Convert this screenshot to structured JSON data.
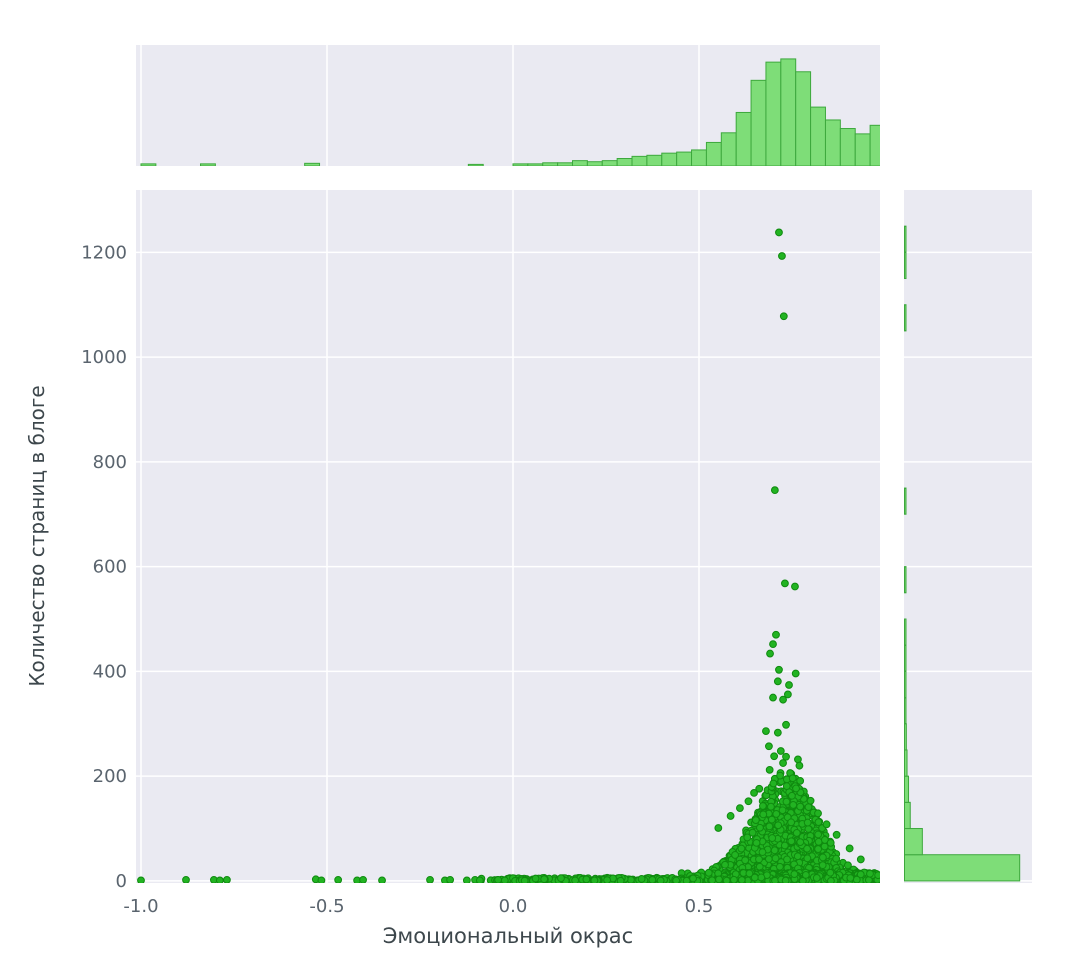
{
  "chart_data": {
    "type": "scatter",
    "subtype": "jointplot-scatter-with-marginal-histograms",
    "title": "",
    "xlabel": "Эмоциональный окрас",
    "ylabel": "Количество страниц в блоге",
    "x_tick_labels": [
      "-1.0",
      "-0.5",
      "0.0",
      "0.5"
    ],
    "x_ticks": [
      -1.0,
      -0.5,
      0.0,
      0.5
    ],
    "y_tick_labels": [
      "0",
      "200",
      "400",
      "600",
      "800",
      "1000",
      "1200"
    ],
    "y_ticks": [
      0,
      200,
      400,
      600,
      800,
      1000,
      1200
    ],
    "xlim": [
      -1.0134,
      0.9866
    ],
    "ylim": [
      -4,
      1319
    ],
    "grid": true,
    "legend": "none",
    "colors": {
      "point_fill": "#22b322",
      "point_edge": "#0f8a0f",
      "hist_fill": "#7edd78",
      "hist_edge": "#3da83d",
      "panel_bg": "#eaeaf2",
      "grid_line": "#ffffff",
      "tick_text": "#5a646e",
      "axis_title_text": "#3d474c",
      "figure_bg": "#ffffff"
    },
    "marginal_top_hist": {
      "orientation": "vertical",
      "bin_start": -1.0,
      "bin_width": 0.04,
      "max_height_fraction": 0.885,
      "heights_norm": [
        0.02,
        0,
        0,
        0,
        0.02,
        0,
        0,
        0,
        0,
        0,
        0,
        0.025,
        0,
        0,
        0,
        0,
        0,
        0,
        0,
        0,
        0,
        0,
        0.015,
        0,
        0,
        0.02,
        0.02,
        0.03,
        0.03,
        0.05,
        0.04,
        0.05,
        0.07,
        0.09,
        0.1,
        0.12,
        0.13,
        0.15,
        0.22,
        0.31,
        0.5,
        0.8,
        0.97,
        1.0,
        0.88,
        0.55,
        0.43,
        0.35,
        0.3,
        0.38
      ]
    },
    "marginal_right_hist": {
      "orientation": "horizontal",
      "bin_start": 0,
      "bin_width": 50,
      "max_width_fraction": 0.9,
      "widths_norm": [
        1.0,
        0.155,
        0.05,
        0.035,
        0.022,
        0.016,
        0.012,
        0.012,
        0.01,
        0.006,
        0,
        0.006,
        0,
        0,
        0.005,
        0,
        0,
        0,
        0,
        0,
        0,
        0.005,
        0,
        0.005,
        0.005
      ]
    },
    "scatter": {
      "seed": 7,
      "point_radius_px": 3.4,
      "outlier_points": [
        [
          0.715,
          1238
        ],
        [
          0.723,
          1193
        ],
        [
          0.728,
          1078
        ],
        [
          0.704,
          746
        ],
        [
          0.731,
          568
        ],
        [
          0.758,
          562
        ],
        [
          0.707,
          470
        ],
        [
          0.699,
          452
        ],
        [
          0.691,
          434
        ],
        [
          0.715,
          403
        ],
        [
          0.76,
          396
        ],
        [
          0.712,
          381
        ],
        [
          0.742,
          374
        ],
        [
          0.739,
          356
        ],
        [
          0.699,
          350
        ],
        [
          0.726,
          346
        ],
        [
          0.734,
          298
        ],
        [
          0.68,
          286
        ],
        [
          0.712,
          283
        ],
        [
          0.688,
          257
        ],
        [
          0.72,
          248
        ],
        [
          0.702,
          238
        ],
        [
          0.734,
          237
        ],
        [
          0.766,
          232
        ],
        [
          0.726,
          225
        ],
        [
          0.77,
          220
        ],
        [
          0.69,
          212
        ],
        [
          0.745,
          206
        ],
        [
          0.718,
          201
        ],
        [
          0.752,
          196
        ],
        [
          0.772,
          191
        ],
        [
          0.7,
          186
        ],
        [
          0.736,
          181
        ],
        [
          0.552,
          101
        ],
        [
          0.585,
          124
        ],
        [
          0.61,
          139
        ],
        [
          0.633,
          152
        ],
        [
          0.648,
          168
        ],
        [
          0.662,
          176
        ],
        [
          0.8,
          153
        ],
        [
          0.82,
          129
        ],
        [
          0.843,
          108
        ],
        [
          0.87,
          88
        ],
        [
          0.905,
          62
        ],
        [
          0.935,
          41
        ]
      ],
      "floor_points_negative": [
        [
          -1.0,
          1
        ],
        [
          -0.879,
          2
        ],
        [
          -0.804,
          2
        ],
        [
          -0.788,
          1
        ],
        [
          -0.769,
          2
        ],
        [
          -0.53,
          3
        ],
        [
          -0.515,
          1
        ],
        [
          -0.47,
          2
        ],
        [
          -0.419,
          1
        ],
        [
          -0.403,
          2
        ],
        [
          -0.352,
          1
        ],
        [
          -0.223,
          2
        ],
        [
          -0.183,
          1
        ],
        [
          -0.169,
          2
        ],
        [
          -0.124,
          1
        ],
        [
          -0.102,
          2
        ],
        [
          -0.089,
          1
        ],
        [
          -0.04,
          2
        ],
        [
          -0.022,
          1
        ]
      ],
      "synth_groups": [
        {
          "name": "main-blob",
          "kind": "pyramid",
          "count": 2100,
          "center_x": 0.731,
          "x_spread": 0.105,
          "x_min": 0.4,
          "x_max": 0.9855,
          "peak_y": 195,
          "sigma_x_env": 0.08,
          "base_y": 14,
          "y_power": 3.0
        },
        {
          "name": "dense-floor-band",
          "kind": "band",
          "count": 850,
          "x_min": 0.45,
          "x_max": 0.9855,
          "x_exp": 0.625,
          "y_max": 16,
          "y_power": 2.0
        },
        {
          "name": "mid-floor",
          "kind": "band",
          "count": 300,
          "x_min": -0.09,
          "x_max": 0.5,
          "x_exp": 0.75,
          "y_max": 6,
          "y_power": 2.0
        }
      ]
    }
  }
}
